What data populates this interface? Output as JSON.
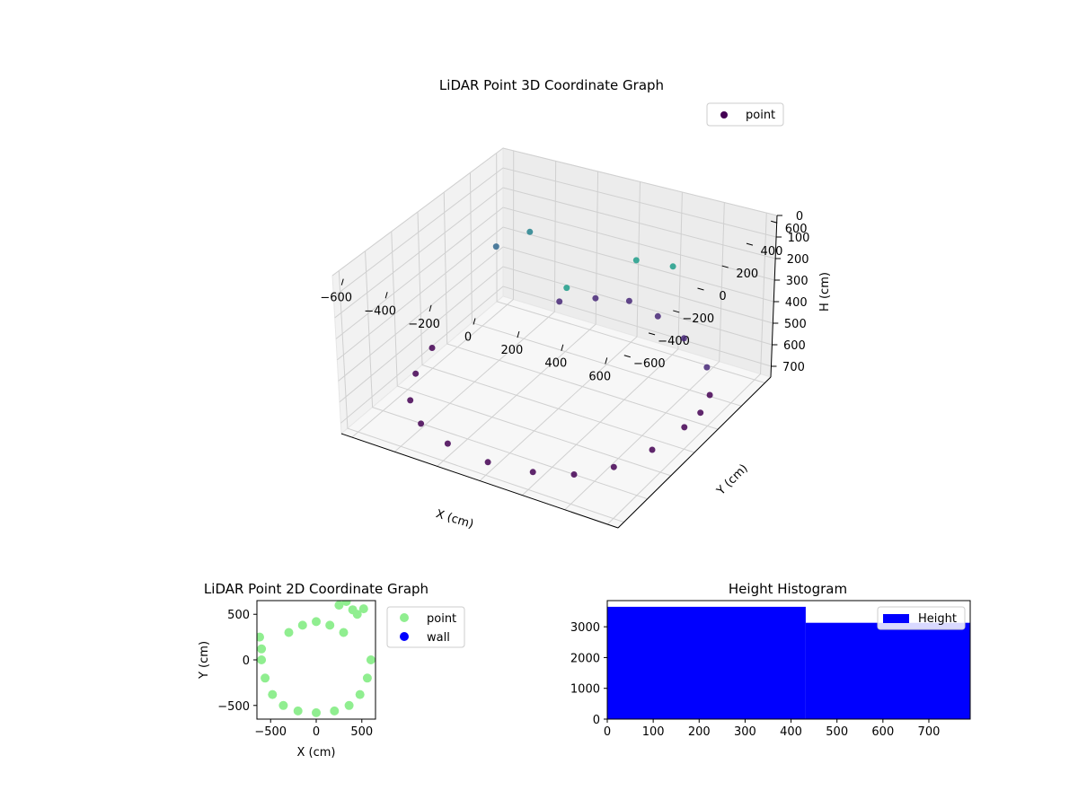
{
  "chart_data": [
    {
      "type": "scatter3d",
      "title": "LiDAR Point 3D Coordinate Graph",
      "xlabel": "X (cm)",
      "ylabel": "Y (cm)",
      "zlabel": "H (cm)",
      "xlim": [
        -650,
        650
      ],
      "ylim": [
        -650,
        650
      ],
      "zlim": [
        0,
        750
      ],
      "z_inverted": true,
      "x_ticks": [
        -600,
        -400,
        -200,
        0,
        200,
        400,
        600
      ],
      "x_tick_labels": [
        "−600",
        "−400",
        "−200",
        "0",
        "200",
        "400",
        "600"
      ],
      "y_ticks": [
        -600,
        -400,
        -200,
        0,
        200,
        400,
        600
      ],
      "y_tick_labels": [
        "−600",
        "−400",
        "−200",
        "0",
        "200",
        "400",
        "600"
      ],
      "z_ticks": [
        0,
        100,
        200,
        300,
        400,
        500,
        600,
        700
      ],
      "z_tick_labels": [
        "0",
        "100",
        "200",
        "300",
        "400",
        "500",
        "600",
        "700"
      ],
      "grid": true,
      "colormap": "viridis",
      "legend": {
        "position": "top-right",
        "entries": [
          {
            "label": "point",
            "color": "#440154"
          }
        ]
      },
      "series": [
        {
          "name": "point",
          "shape": "cylinder-wall",
          "center": [
            0,
            0
          ],
          "radius": 560,
          "height_range": [
            0,
            720
          ],
          "x": [
            -600,
            -560,
            -480,
            -360,
            -200,
            0,
            200,
            360,
            480,
            560,
            600,
            -300,
            -150,
            0,
            150,
            300,
            480,
            580,
            620,
            -500,
            -400,
            100,
            250,
            450
          ],
          "y": [
            0,
            -200,
            -380,
            -500,
            -560,
            -580,
            -560,
            -500,
            -380,
            -200,
            0,
            520,
            560,
            580,
            560,
            520,
            400,
            250,
            100,
            350,
            450,
            -100,
            200,
            150
          ],
          "z": [
            650,
            660,
            670,
            680,
            690,
            700,
            690,
            680,
            670,
            660,
            650,
            600,
            560,
            540,
            560,
            600,
            620,
            640,
            630,
            300,
            250,
            100,
            80,
            30
          ]
        }
      ]
    },
    {
      "type": "scatter",
      "title": "LiDAR Point 2D Coordinate Graph",
      "xlabel": "X (cm)",
      "ylabel": "Y (cm)",
      "xlim": [
        -650,
        650
      ],
      "ylim": [
        -650,
        650
      ],
      "x_ticks": [
        -500,
        0,
        500
      ],
      "x_tick_labels": [
        "−500",
        "0",
        "500"
      ],
      "y_ticks": [
        -500,
        0,
        500
      ],
      "y_tick_labels": [
        "−500",
        "0",
        "500"
      ],
      "legend": {
        "position": "outside-right",
        "entries": [
          {
            "label": "point",
            "color": "#90ee90"
          },
          {
            "label": "wall",
            "color": "#0000ff"
          }
        ]
      },
      "series": [
        {
          "name": "point",
          "color": "#90ee90",
          "x": [
            -600,
            -560,
            -480,
            -360,
            -200,
            0,
            200,
            360,
            480,
            560,
            600,
            -300,
            -150,
            0,
            150,
            300,
            450,
            520,
            -620,
            -600,
            250,
            400,
            330
          ],
          "y": [
            0,
            -200,
            -380,
            -500,
            -560,
            -580,
            -560,
            -500,
            -380,
            -200,
            0,
            300,
            380,
            420,
            380,
            300,
            500,
            560,
            250,
            120,
            600,
            550,
            640
          ]
        },
        {
          "name": "wall",
          "color": "#0000ff",
          "x": [],
          "y": []
        }
      ]
    },
    {
      "type": "bar",
      "title": "Height Histogram",
      "xlim": [
        0,
        790
      ],
      "ylim": [
        0,
        3850
      ],
      "x_ticks": [
        0,
        100,
        200,
        300,
        400,
        500,
        600,
        700
      ],
      "y_ticks": [
        0,
        1000,
        2000,
        3000
      ],
      "legend": {
        "position": "top-right",
        "entries": [
          {
            "label": "Height",
            "color": "#0000ff"
          }
        ]
      },
      "bins": [
        {
          "start": 0,
          "end": 432,
          "count": 3650
        },
        {
          "start": 432,
          "end": 790,
          "count": 3130
        }
      ]
    }
  ]
}
